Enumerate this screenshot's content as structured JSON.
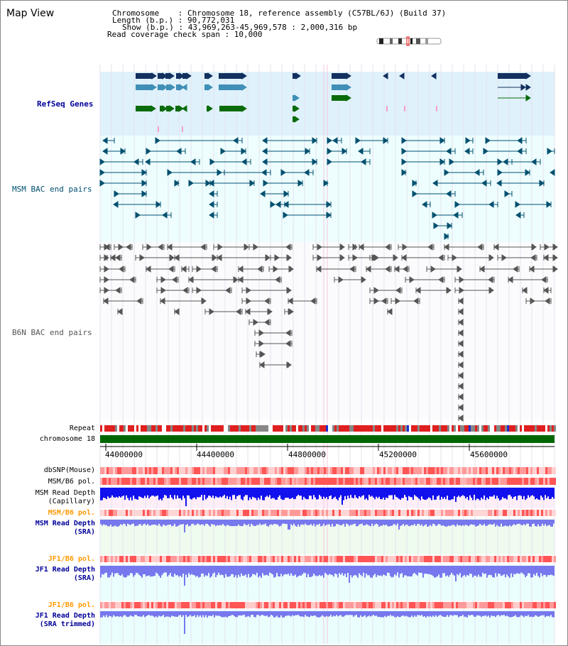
{
  "title": "Map View",
  "header": {
    "chromosome": "Chromosome    : Chromosome 18, reference assembly (C57BL/6J) (Build 37)",
    "length": "Length (b.p.) : 90,772,031",
    "show": "Show (b.p.) : 43,969,263-45,969,578 : 2,000,316 bp",
    "coverage": "Read coverage check span : 10,000"
  },
  "tracks": {
    "refseq": "RefSeq Genes",
    "msm_bac": "MSM BAC end pairs",
    "b6n_bac": "B6N BAC end pairs",
    "repeat": "Repeat",
    "chromosome": "chromosome 18"
  },
  "axis": {
    "ticks": [
      "44000000",
      "44400000",
      "44800000",
      "45200000",
      "45600000"
    ]
  },
  "lower_tracks": {
    "dbsnp": "dbSNP(Mouse)",
    "msm_b6_pol_1": "MSM/B6 pol.",
    "msm_read_depth_cap_1": "MSM Read Depth",
    "msm_read_depth_cap_2": "(Capillary)",
    "msm_b6_pol_2": "MSM/B6 pol.",
    "msm_read_depth_sra_1": "MSM Read Depth",
    "msm_read_depth_sra_2": "(SRA)",
    "jf1_b6_pol_1": "JF1/B6 pol.",
    "jf1_read_depth_sra_1": "JF1 Read Depth",
    "jf1_read_depth_sra_2": "(SRA)",
    "jf1_b6_pol_2": "JF1/B6 pol.",
    "jf1_read_depth_trim_1": "JF1 Read Depth",
    "jf1_read_depth_trim_2": "(SRA trimmed)"
  },
  "colors": {
    "refseq_bg": "#dff1fb",
    "msm_bg": "#eefefe",
    "dark_gene": "#13305e",
    "mid_gene": "#3f8fb7",
    "green_gene": "#0a6b0a",
    "msm_line": "#005070",
    "b6n_line": "#555555",
    "chrom_bar": "#006600",
    "depth_cap": "#1111ee",
    "depth_sra": "#7777ee",
    "label_blue": "#000099",
    "label_orange": "#ff9900"
  }
}
